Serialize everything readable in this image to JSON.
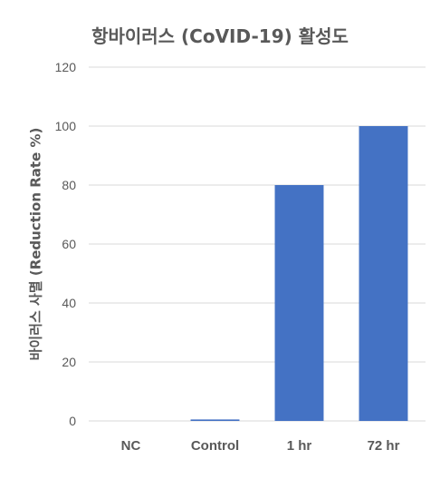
{
  "chart_data": {
    "type": "bar",
    "title": "항바이러스 (CoVID-19) 활성도",
    "xlabel": "",
    "ylabel": "바이러스 사멸 (Reduction Rate %)",
    "categories": [
      "NC",
      "Control",
      "1 hr",
      "72 hr"
    ],
    "values": [
      0,
      0.5,
      80,
      100
    ],
    "ylim": [
      0,
      120
    ],
    "yticks": [
      0,
      20,
      40,
      60,
      80,
      100,
      120
    ],
    "grid": true,
    "legend": "none",
    "bar_color": "#4472C4",
    "grid_color": "#D9D9D9"
  }
}
